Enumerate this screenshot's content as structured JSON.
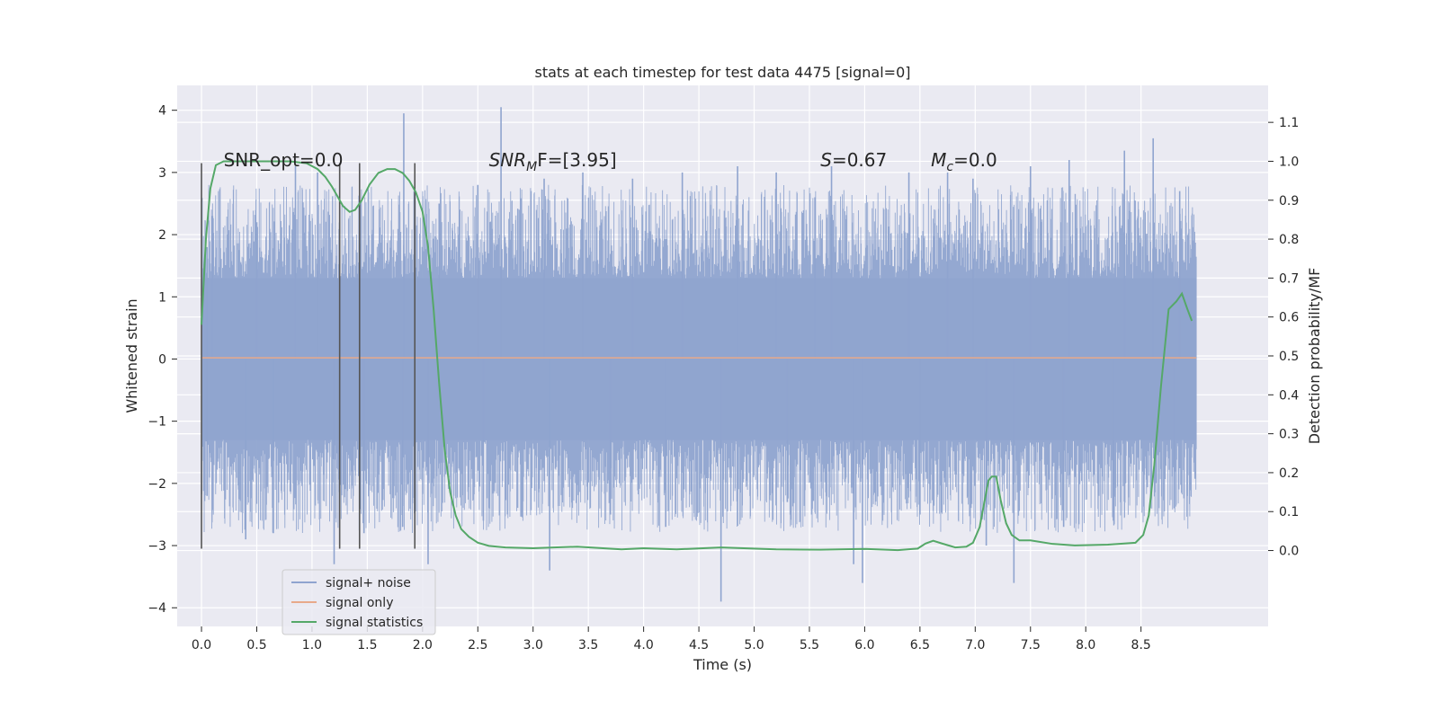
{
  "chart_data": {
    "type": "line",
    "title": "stats at each timestep for test data 4475 [signal=0]",
    "xlabel": "Time (s)",
    "ylabel": "Whitened strain",
    "ylabel_right": "Detection probability/MF",
    "xlim": [
      -0.22,
      9.65
    ],
    "ylim": [
      -4.3,
      4.4
    ],
    "ylim_right": [
      -0.195,
      1.195
    ],
    "x_ticks": [
      0.0,
      0.5,
      1.0,
      1.5,
      2.0,
      2.5,
      3.0,
      3.5,
      4.0,
      4.5,
      5.0,
      5.5,
      6.0,
      6.5,
      7.0,
      7.5,
      8.0,
      8.5
    ],
    "x_tick_labels": [
      "0.0",
      "0.5",
      "1.0",
      "1.5",
      "2.0",
      "2.5",
      "3.0",
      "3.5",
      "4.0",
      "4.5",
      "5.0",
      "5.5",
      "6.0",
      "6.5",
      "7.0",
      "7.5",
      "8.0",
      "8.5"
    ],
    "y_ticks": [
      -4,
      -3,
      -2,
      -1,
      0,
      1,
      2,
      3,
      4
    ],
    "y_tick_labels": [
      "−4",
      "−3",
      "−2",
      "−1",
      "0",
      "1",
      "2",
      "3",
      "4"
    ],
    "y_ticks_right": [
      0.0,
      0.1,
      0.2,
      0.3,
      0.4,
      0.5,
      0.6,
      0.7,
      0.8,
      0.9,
      1.0,
      1.1
    ],
    "y_tick_labels_right": [
      "0.0",
      "0.1",
      "0.2",
      "0.3",
      "0.4",
      "0.5",
      "0.6",
      "0.7",
      "0.8",
      "0.9",
      "1.0",
      "1.1"
    ],
    "grid": true,
    "legend_position": "lower-left",
    "annotations": [
      {
        "x": 0.2,
        "y": 3.1,
        "text": "SNR_opt=0.0"
      },
      {
        "x": 2.6,
        "y": 3.1,
        "text": "SNR",
        "sub": "M",
        "tail": "F=[3.95]"
      },
      {
        "x": 5.6,
        "y": 3.1,
        "text": "S",
        "sub": "",
        "tail": "=0.67"
      },
      {
        "x": 6.6,
        "y": 3.1,
        "text": "M",
        "sub": "c",
        "tail": "=0.0"
      }
    ],
    "vertical_lines": [
      {
        "x": 0.0,
        "y_from": -3.05,
        "y_to": 3.15
      },
      {
        "x": 1.25,
        "y_from": -3.05,
        "y_to": 3.15
      },
      {
        "x": 1.43,
        "y_from": -3.05,
        "y_to": 3.15
      },
      {
        "x": 1.93,
        "y_from": -3.05,
        "y_to": 3.15
      }
    ],
    "series": [
      {
        "name": "signal+ noise",
        "axis": "left",
        "color": "#8fa4cf",
        "x_range": [
          0.0,
          9.0
        ],
        "band_typical": [
          -1.3,
          1.3
        ],
        "band_extreme": [
          -3.9,
          4.0
        ],
        "peaks_high": [
          [
            0.05,
            1.8
          ],
          [
            0.1,
            2.3
          ],
          [
            0.5,
            2.2
          ],
          [
            0.85,
            3.1
          ],
          [
            1.05,
            3.0
          ],
          [
            1.83,
            3.95
          ],
          [
            2.15,
            2.5
          ],
          [
            2.5,
            2.8
          ],
          [
            2.71,
            4.05
          ],
          [
            3.1,
            2.9
          ],
          [
            3.45,
            3.0
          ],
          [
            3.9,
            2.9
          ],
          [
            4.35,
            3.0
          ],
          [
            4.85,
            3.1
          ],
          [
            5.2,
            3.0
          ],
          [
            5.55,
            2.6
          ],
          [
            5.7,
            3.1
          ],
          [
            6.4,
            3.0
          ],
          [
            6.75,
            3.0
          ],
          [
            6.98,
            2.9
          ],
          [
            7.5,
            3.1
          ],
          [
            7.85,
            3.2
          ],
          [
            8.35,
            3.35
          ],
          [
            8.61,
            3.55
          ],
          [
            8.85,
            2.7
          ]
        ],
        "peaks_low": [
          [
            0.05,
            -2.2
          ],
          [
            0.4,
            -2.9
          ],
          [
            0.65,
            -2.8
          ],
          [
            1.2,
            -3.3
          ],
          [
            1.47,
            -2.8
          ],
          [
            1.82,
            -2.7
          ],
          [
            2.05,
            -3.3
          ],
          [
            2.55,
            -2.6
          ],
          [
            3.15,
            -3.4
          ],
          [
            3.7,
            -2.5
          ],
          [
            4.2,
            -2.7
          ],
          [
            4.7,
            -3.9
          ],
          [
            5.3,
            -2.3
          ],
          [
            5.9,
            -3.3
          ],
          [
            5.98,
            -3.6
          ],
          [
            6.5,
            -2.5
          ],
          [
            7.1,
            -3.0
          ],
          [
            7.35,
            -3.6
          ],
          [
            7.8,
            -2.7
          ],
          [
            8.25,
            -2.6
          ],
          [
            8.8,
            -2.4
          ]
        ]
      },
      {
        "name": "signal only",
        "axis": "left",
        "color": "#e8a98a",
        "x": [
          0.0,
          9.0
        ],
        "y": [
          0.02,
          0.02
        ]
      },
      {
        "name": "signal statistics",
        "axis": "right",
        "color": "#55a868",
        "x": [
          0.0,
          0.04,
          0.08,
          0.13,
          0.2,
          0.3,
          0.45,
          0.6,
          0.8,
          0.95,
          1.05,
          1.12,
          1.18,
          1.23,
          1.28,
          1.34,
          1.39,
          1.45,
          1.52,
          1.6,
          1.68,
          1.75,
          1.82,
          1.88,
          1.94,
          2.0,
          2.05,
          2.1,
          2.15,
          2.2,
          2.25,
          2.3,
          2.35,
          2.42,
          2.5,
          2.6,
          2.75,
          3.0,
          3.4,
          3.8,
          4.0,
          4.3,
          4.7,
          5.2,
          5.6,
          6.0,
          6.3,
          6.48,
          6.55,
          6.62,
          6.7,
          6.82,
          6.92,
          6.98,
          7.04,
          7.08,
          7.12,
          7.15,
          7.19,
          7.23,
          7.28,
          7.33,
          7.4,
          7.5,
          7.7,
          7.9,
          8.2,
          8.45,
          8.52,
          8.57,
          8.62,
          8.68,
          8.75,
          8.82,
          8.87,
          8.92,
          8.96
        ],
        "y": [
          0.58,
          0.8,
          0.93,
          0.99,
          1.0,
          1.0,
          1.0,
          1.0,
          1.0,
          0.995,
          0.98,
          0.96,
          0.935,
          0.91,
          0.885,
          0.87,
          0.875,
          0.9,
          0.94,
          0.97,
          0.98,
          0.98,
          0.97,
          0.95,
          0.92,
          0.87,
          0.78,
          0.62,
          0.43,
          0.26,
          0.15,
          0.09,
          0.055,
          0.035,
          0.02,
          0.012,
          0.008,
          0.006,
          0.01,
          0.003,
          0.006,
          0.003,
          0.008,
          0.003,
          0.002,
          0.004,
          0.001,
          0.005,
          0.018,
          0.025,
          0.018,
          0.008,
          0.01,
          0.02,
          0.06,
          0.12,
          0.18,
          0.19,
          0.19,
          0.13,
          0.07,
          0.04,
          0.026,
          0.026,
          0.017,
          0.013,
          0.015,
          0.02,
          0.04,
          0.09,
          0.22,
          0.42,
          0.62,
          0.64,
          0.66,
          0.62,
          0.59
        ]
      }
    ]
  }
}
